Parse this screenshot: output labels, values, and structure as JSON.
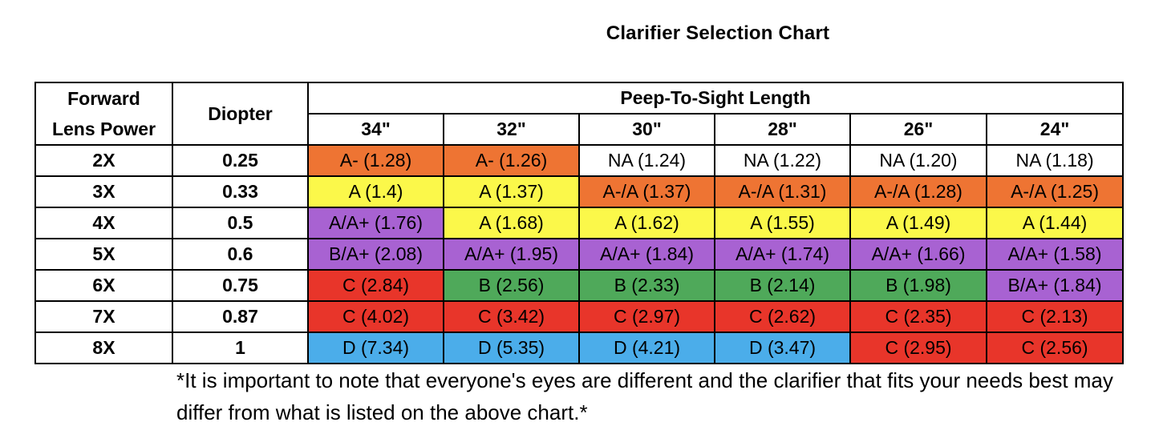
{
  "title": "Clarifier Selection Chart",
  "headers": {
    "lens_power": "Forward Lens Power",
    "lens_power_line1": "Forward",
    "lens_power_line2": "Lens Power",
    "diopter": "Diopter",
    "peep_to_sight": "Peep-To-Sight Length",
    "lengths": [
      "34\"",
      "32\"",
      "30\"",
      "28\"",
      "26\"",
      "24\""
    ]
  },
  "colors": {
    "orange": "#ee7433",
    "yellow": "#fbf84a",
    "purple": "#a862d2",
    "red": "#e8352a",
    "green": "#4fa95a",
    "blue": "#4badea",
    "white": "#ffffff"
  },
  "rows": [
    {
      "power": "2X",
      "diopter": "0.25",
      "cells": [
        {
          "text": "A- (1.28)",
          "color": "orange"
        },
        {
          "text": "A- (1.26)",
          "color": "orange"
        },
        {
          "text": "NA (1.24)",
          "color": "white"
        },
        {
          "text": "NA (1.22)",
          "color": "white"
        },
        {
          "text": "NA (1.20)",
          "color": "white"
        },
        {
          "text": "NA (1.18)",
          "color": "white"
        }
      ]
    },
    {
      "power": "3X",
      "diopter": "0.33",
      "cells": [
        {
          "text": "A (1.4)",
          "color": "yellow"
        },
        {
          "text": "A (1.37)",
          "color": "yellow"
        },
        {
          "text": "A-/A (1.37)",
          "color": "orange"
        },
        {
          "text": "A-/A (1.31)",
          "color": "orange"
        },
        {
          "text": "A-/A (1.28)",
          "color": "orange"
        },
        {
          "text": "A-/A (1.25)",
          "color": "orange"
        }
      ]
    },
    {
      "power": "4X",
      "diopter": "0.5",
      "cells": [
        {
          "text": "A/A+ (1.76)",
          "color": "purple"
        },
        {
          "text": "A (1.68)",
          "color": "yellow"
        },
        {
          "text": "A (1.62)",
          "color": "yellow"
        },
        {
          "text": "A (1.55)",
          "color": "yellow"
        },
        {
          "text": "A (1.49)",
          "color": "yellow"
        },
        {
          "text": "A (1.44)",
          "color": "yellow"
        }
      ]
    },
    {
      "power": "5X",
      "diopter": "0.6",
      "cells": [
        {
          "text": "B/A+ (2.08)",
          "color": "purple"
        },
        {
          "text": "A/A+ (1.95)",
          "color": "purple"
        },
        {
          "text": "A/A+ (1.84)",
          "color": "purple"
        },
        {
          "text": "A/A+ (1.74)",
          "color": "purple"
        },
        {
          "text": "A/A+ (1.66)",
          "color": "purple"
        },
        {
          "text": "A/A+ (1.58)",
          "color": "purple"
        }
      ]
    },
    {
      "power": "6X",
      "diopter": "0.75",
      "cells": [
        {
          "text": "C (2.84)",
          "color": "red"
        },
        {
          "text": "B (2.56)",
          "color": "green"
        },
        {
          "text": "B (2.33)",
          "color": "green"
        },
        {
          "text": "B (2.14)",
          "color": "green"
        },
        {
          "text": "B (1.98)",
          "color": "green"
        },
        {
          "text": "B/A+ (1.84)",
          "color": "purple"
        }
      ]
    },
    {
      "power": "7X",
      "diopter": "0.87",
      "cells": [
        {
          "text": "C (4.02)",
          "color": "red"
        },
        {
          "text": "C (3.42)",
          "color": "red"
        },
        {
          "text": "C (2.97)",
          "color": "red"
        },
        {
          "text": "C (2.62)",
          "color": "red"
        },
        {
          "text": "C (2.35)",
          "color": "red"
        },
        {
          "text": "C (2.13)",
          "color": "red"
        }
      ]
    },
    {
      "power": "8X",
      "diopter": "1",
      "cells": [
        {
          "text": "D (7.34)",
          "color": "blue"
        },
        {
          "text": "D (5.35)",
          "color": "blue"
        },
        {
          "text": "D (4.21)",
          "color": "blue"
        },
        {
          "text": "D (3.47)",
          "color": "blue"
        },
        {
          "text": "C (2.95)",
          "color": "red"
        },
        {
          "text": "C (2.56)",
          "color": "red"
        }
      ]
    }
  ],
  "footnote": "*It is important to note that everyone's eyes are different and the clarifier that fits your needs best may differ from what is listed on the above chart.*"
}
